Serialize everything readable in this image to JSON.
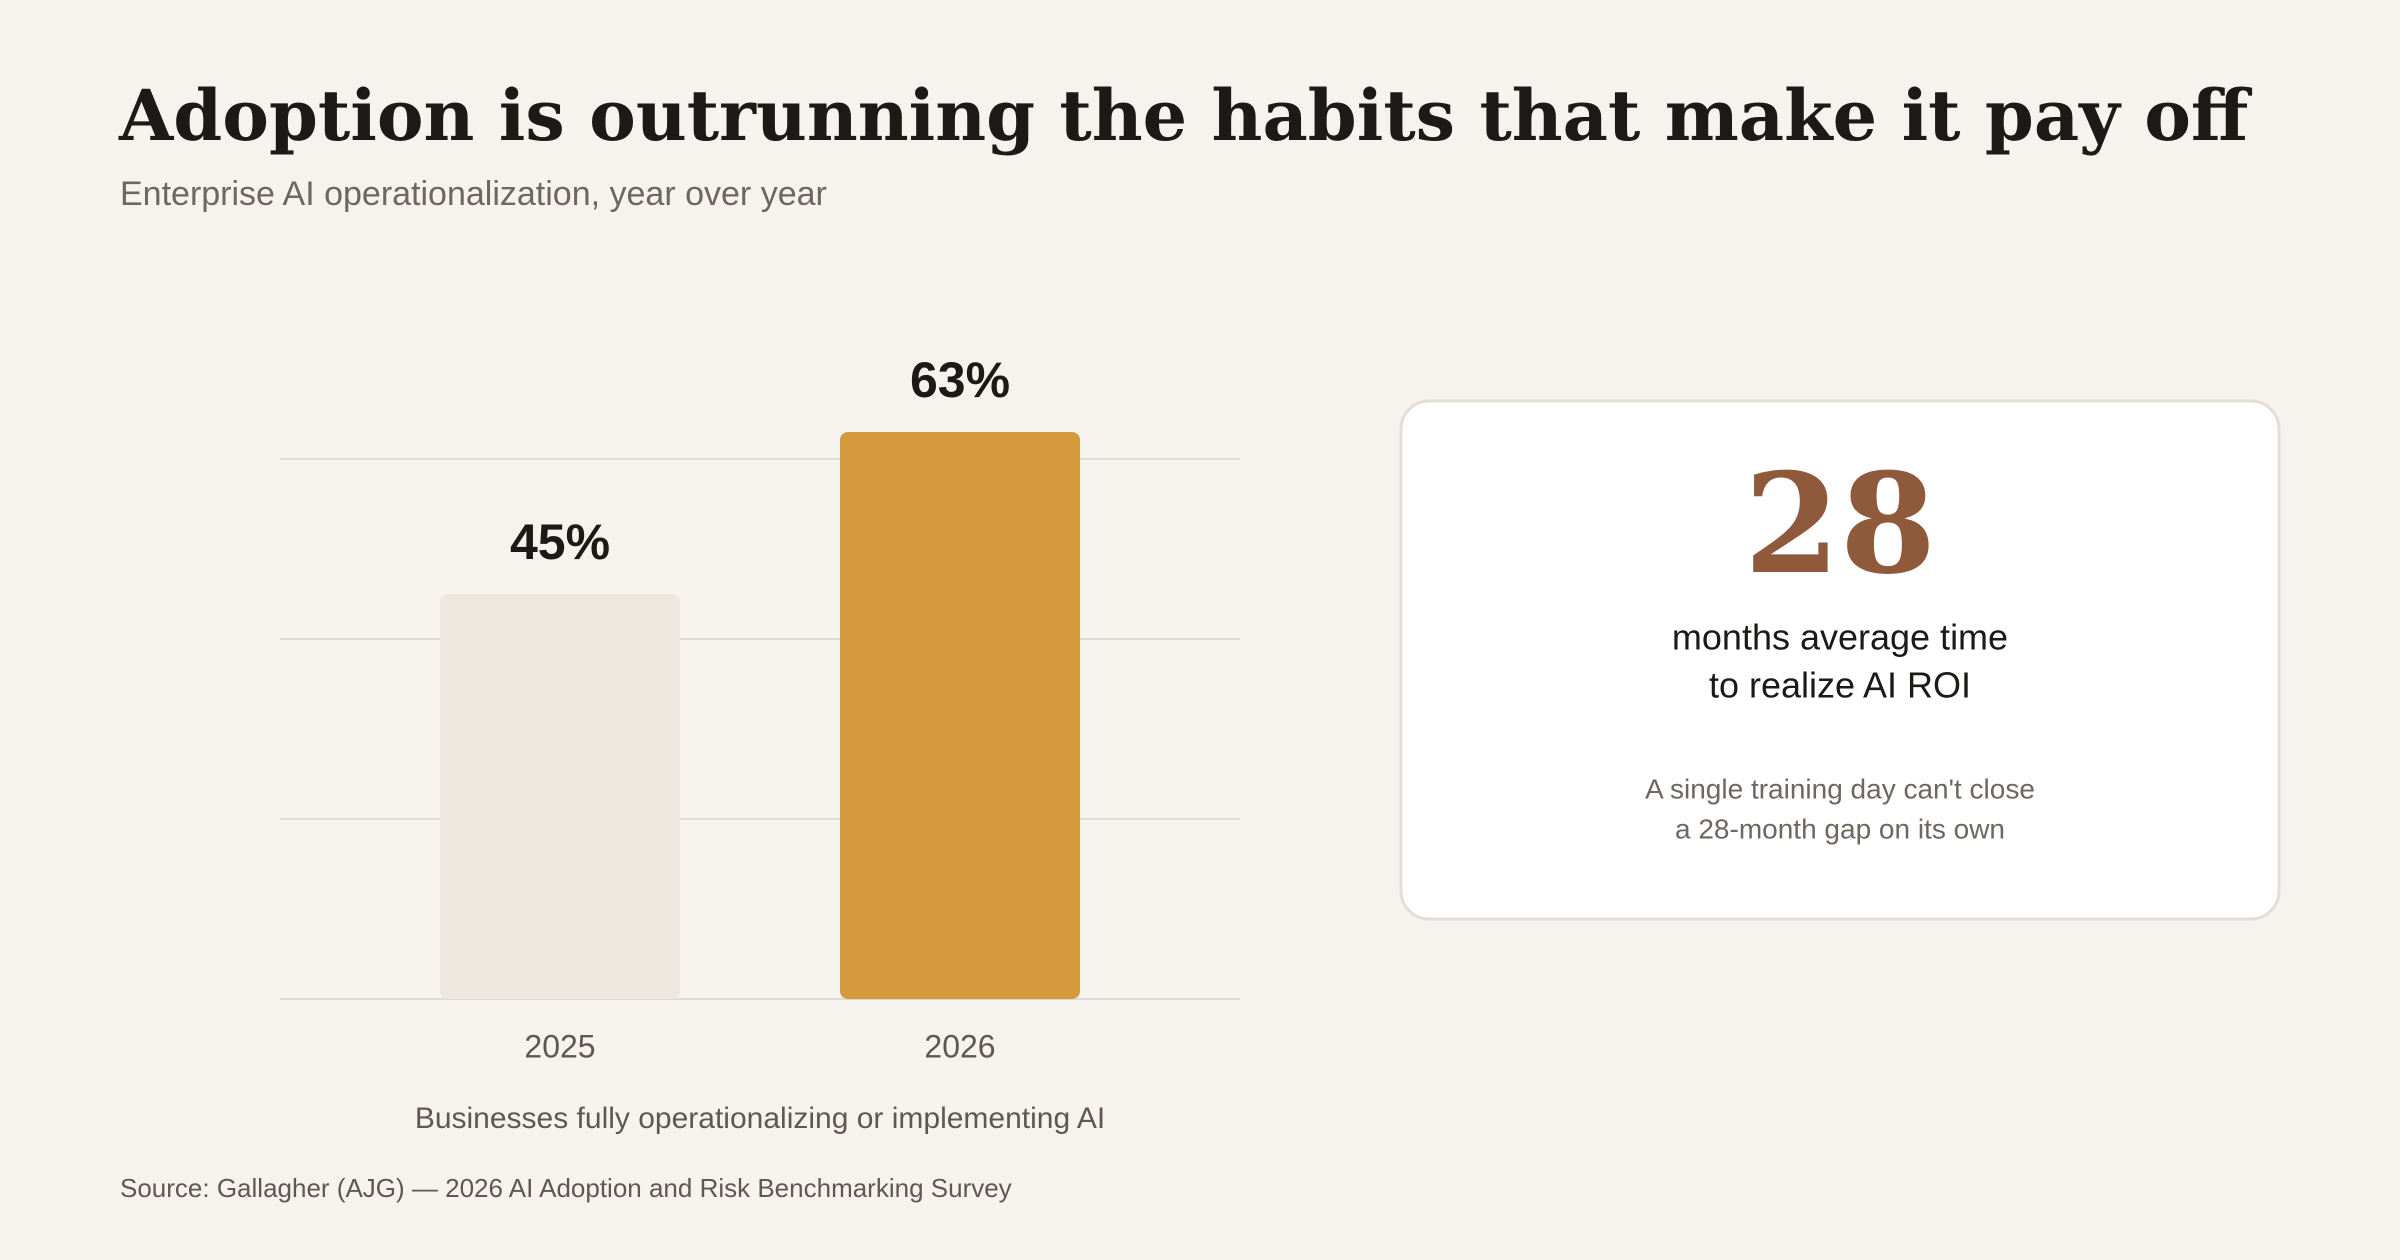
{
  "chart_data": {
    "type": "bar",
    "title": "Adoption is outrunning the habits that make it pay off",
    "subtitle": "Enterprise AI operationalization, year over year",
    "categories": [
      "2025",
      "2026"
    ],
    "values": [
      45,
      63
    ],
    "value_labels": [
      "45%",
      "63%"
    ],
    "colors": [
      "#EEE7DF",
      "#D49A3B"
    ],
    "x_label": "Businesses fully operationalizing or implementing AI",
    "ylim": [
      0,
      60
    ],
    "yticks": [
      0,
      20,
      40,
      60
    ],
    "grid": true,
    "source": "Source: Gallagher (AJG) — 2026 AI Adoption and Risk Benchmarking Survey"
  },
  "callout": {
    "value": 28,
    "text_lines": [
      "months average time",
      "to realize AI ROI"
    ],
    "note_lines": [
      "A single training day can't close",
      "a 28-month gap on its own"
    ]
  }
}
